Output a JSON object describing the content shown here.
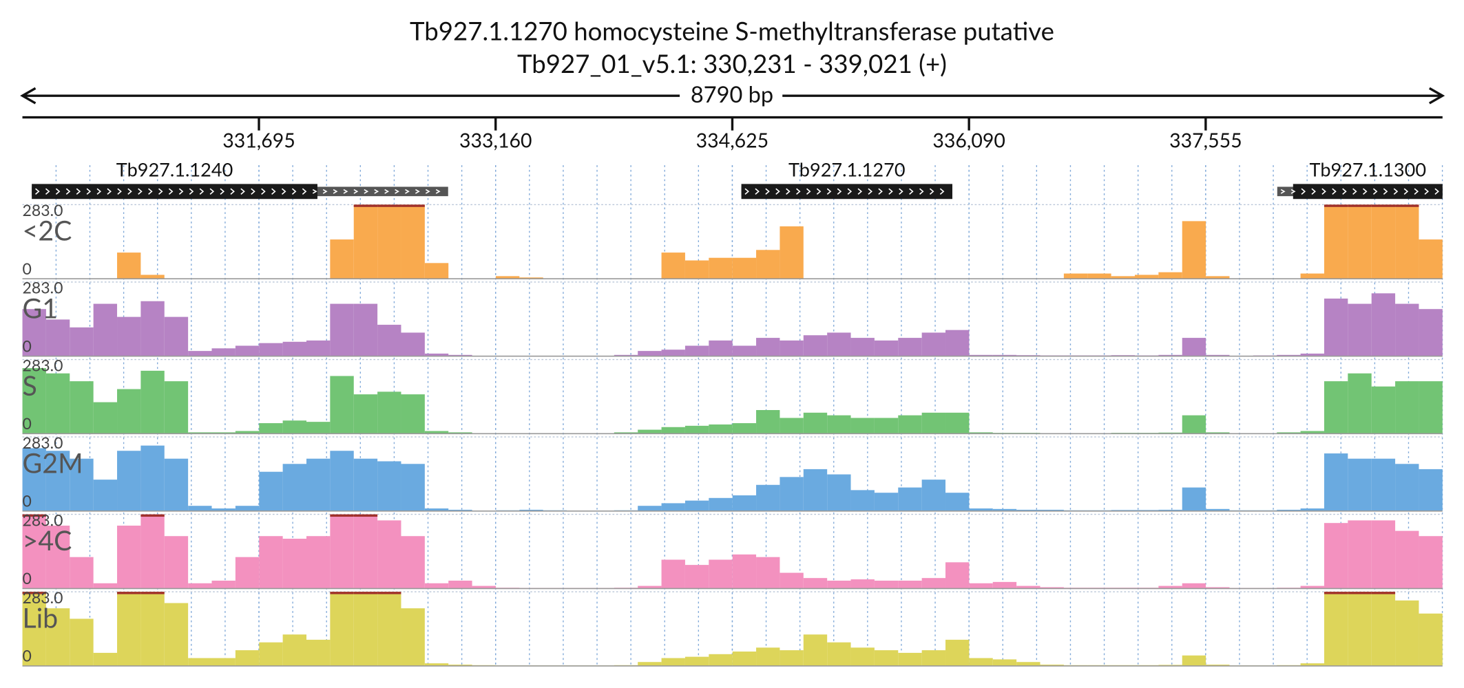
{
  "chart_data": {
    "type": "bar",
    "title": "Tb927.1.1270  homocysteine S-methyltransferase  putative",
    "subtitle": "Tb927_01_v5.1: 330,231 - 339,021 (+)",
    "span_label": "8790 bp",
    "xlim": [
      330231,
      339021
    ],
    "xticks": [
      {
        "value": 331695,
        "label": "331,695"
      },
      {
        "value": 333160,
        "label": "333,160"
      },
      {
        "value": 334625,
        "label": "334,625"
      },
      {
        "value": 336090,
        "label": "336,090"
      },
      {
        "value": 337555,
        "label": "337,555"
      }
    ],
    "ylim": [
      0,
      283
    ],
    "yticks": [
      0,
      {
        "value": 283,
        "label": "283.0"
      }
    ],
    "genes": [
      {
        "label": "Tb927.1.1240",
        "cds": [
          330289,
          332057
        ],
        "transcript": [
          330289,
          332866
        ]
      },
      {
        "label": "Tb927.1.1270",
        "cds": [
          334681,
          335987
        ],
        "transcript": [
          334681,
          335987
        ]
      },
      {
        "label": "Tb927.1.1300",
        "cds": [
          338096,
          339021
        ],
        "transcript": [
          337998,
          339021
        ]
      }
    ],
    "x": [
      330304,
      330451,
      330597,
      330744,
      330890,
      331037,
      331183,
      331330,
      331476,
      331623,
      331769,
      331916,
      332062,
      332209,
      332355,
      332502,
      332648,
      332795,
      332941,
      333088,
      333234,
      333381,
      333527,
      333674,
      333820,
      333967,
      334113,
      334260,
      334406,
      334553,
      334699,
      334846,
      334992,
      335139,
      335285,
      335432,
      335578,
      335725,
      335871,
      336018,
      336164,
      336311,
      336457,
      336604,
      336750,
      336897,
      337043,
      337190,
      337336,
      337483,
      337629,
      337776,
      337922,
      338069,
      338215,
      338362,
      338508,
      338655,
      338801,
      338948
    ],
    "series": [
      {
        "name": "<2C",
        "color": "#f9aa4e",
        "values": [
          0,
          0,
          0,
          0,
          100,
          15,
          0,
          0,
          0,
          0,
          0,
          0,
          0,
          150,
          283,
          283,
          283,
          60,
          0,
          0,
          10,
          5,
          0,
          0,
          0,
          0,
          0,
          100,
          70,
          80,
          80,
          110,
          200,
          0,
          0,
          0,
          0,
          0,
          0,
          0,
          0,
          0,
          0,
          0,
          20,
          20,
          10,
          15,
          25,
          220,
          10,
          0,
          0,
          0,
          20,
          283,
          283,
          283,
          283,
          150
        ]
      },
      {
        "name": "G1",
        "color": "#b683c4",
        "values": [
          180,
          140,
          110,
          200,
          150,
          210,
          150,
          20,
          30,
          40,
          50,
          55,
          60,
          200,
          200,
          120,
          90,
          10,
          5,
          0,
          2,
          1,
          0,
          0,
          0,
          5,
          20,
          25,
          40,
          60,
          40,
          70,
          60,
          80,
          90,
          70,
          60,
          70,
          90,
          100,
          5,
          5,
          4,
          3,
          3,
          3,
          4,
          3,
          5,
          70,
          5,
          2,
          3,
          5,
          10,
          220,
          200,
          240,
          200,
          180
        ]
      },
      {
        "name": "S",
        "color": "#72c474",
        "values": [
          250,
          230,
          200,
          120,
          170,
          240,
          200,
          5,
          5,
          10,
          40,
          50,
          45,
          220,
          150,
          160,
          150,
          10,
          5,
          2,
          0,
          0,
          0,
          0,
          0,
          5,
          15,
          25,
          30,
          35,
          40,
          90,
          60,
          80,
          70,
          60,
          60,
          70,
          80,
          80,
          5,
          3,
          3,
          2,
          2,
          2,
          3,
          3,
          4,
          70,
          5,
          2,
          2,
          5,
          10,
          200,
          230,
          180,
          200,
          200
        ]
      },
      {
        "name": "G2M",
        "color": "#6aaae0",
        "values": [
          240,
          230,
          200,
          120,
          230,
          250,
          200,
          20,
          10,
          20,
          150,
          180,
          200,
          230,
          200,
          190,
          180,
          10,
          5,
          2,
          3,
          5,
          3,
          2,
          2,
          3,
          20,
          30,
          40,
          50,
          60,
          100,
          130,
          160,
          140,
          80,
          70,
          90,
          120,
          70,
          10,
          8,
          5,
          5,
          3,
          3,
          4,
          4,
          5,
          90,
          8,
          3,
          3,
          5,
          10,
          220,
          200,
          200,
          180,
          160
        ]
      },
      {
        "name": ">4C",
        "color": "#f391bf",
        "values": [
          283,
          240,
          120,
          20,
          240,
          283,
          200,
          20,
          30,
          120,
          200,
          190,
          200,
          283,
          283,
          260,
          200,
          20,
          30,
          10,
          3,
          2,
          2,
          2,
          2,
          3,
          10,
          110,
          90,
          110,
          130,
          120,
          60,
          40,
          30,
          35,
          30,
          30,
          40,
          100,
          20,
          25,
          10,
          5,
          3,
          3,
          3,
          3,
          10,
          20,
          5,
          2,
          2,
          3,
          10,
          250,
          260,
          260,
          220,
          200
        ]
      },
      {
        "name": "Lib",
        "color": "#ddd55a",
        "values": [
          283,
          220,
          180,
          50,
          283,
          283,
          240,
          30,
          30,
          60,
          90,
          120,
          100,
          283,
          283,
          283,
          220,
          10,
          5,
          3,
          2,
          2,
          2,
          2,
          2,
          3,
          15,
          30,
          35,
          45,
          55,
          70,
          60,
          120,
          90,
          70,
          60,
          50,
          60,
          100,
          30,
          25,
          15,
          5,
          3,
          3,
          3,
          3,
          4,
          40,
          5,
          2,
          2,
          3,
          10,
          283,
          283,
          283,
          250,
          200
        ]
      }
    ]
  }
}
